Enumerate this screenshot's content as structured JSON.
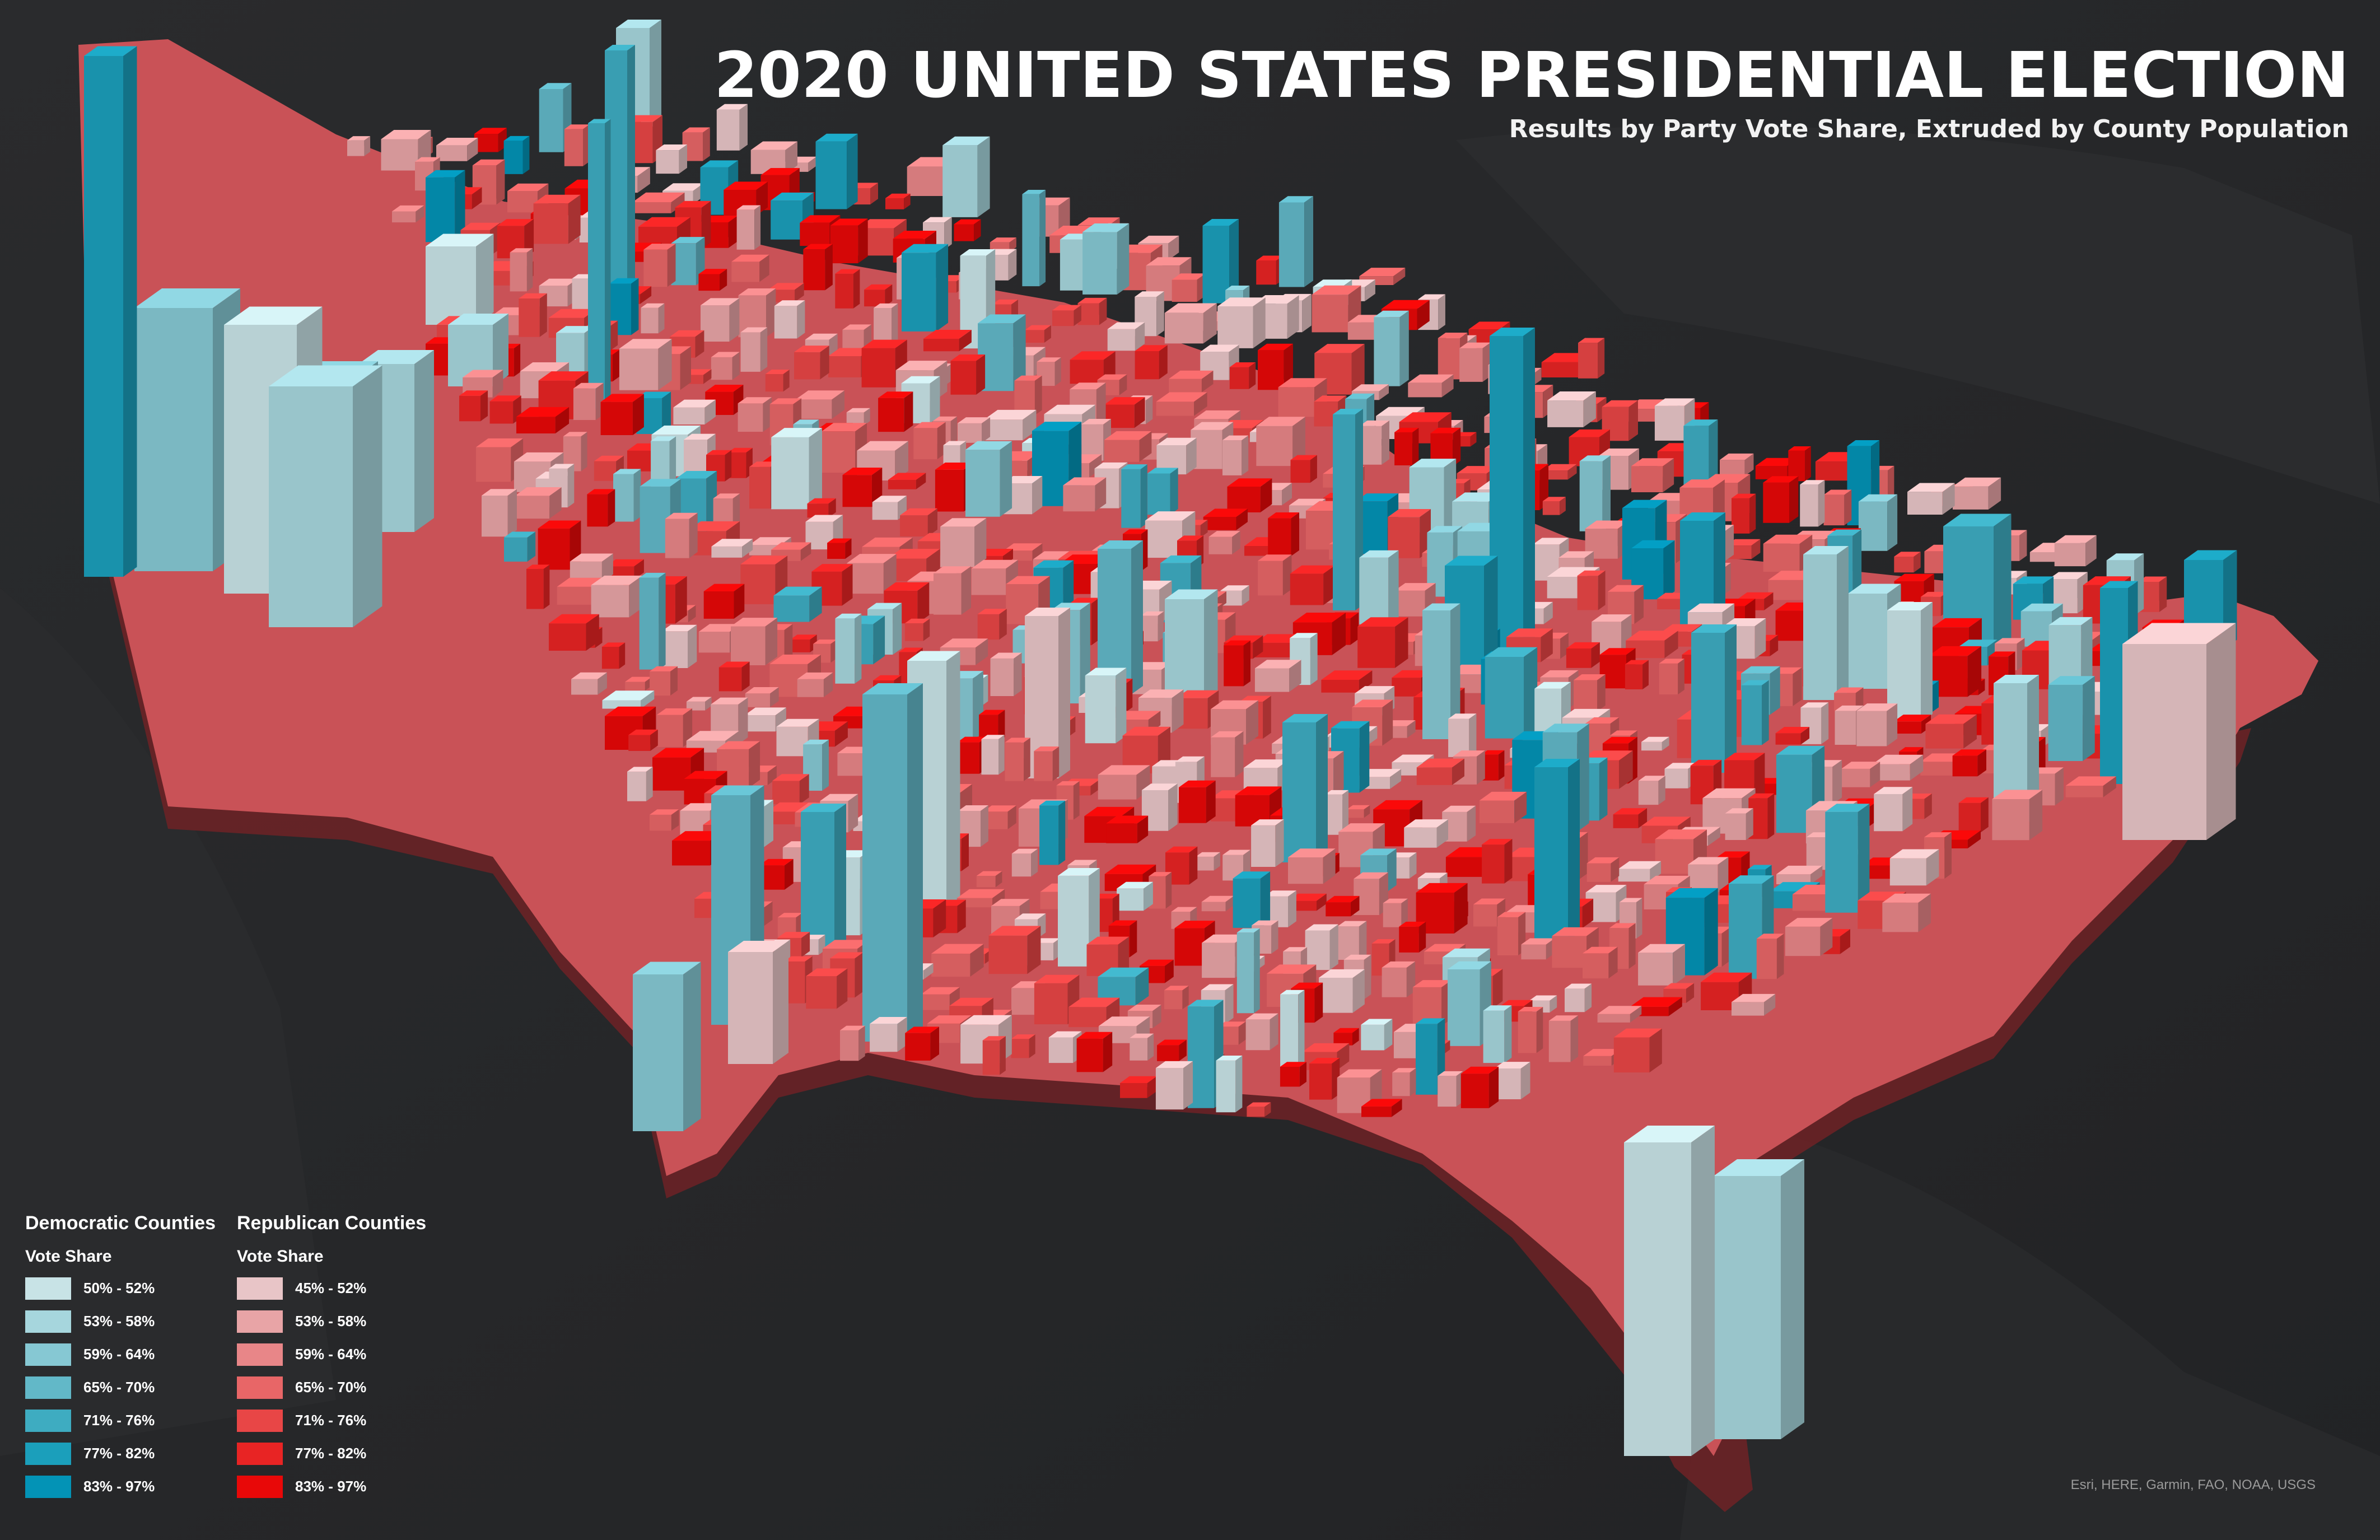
{
  "title": "2020 UNITED STATES PRESIDENTIAL ELECTION",
  "subtitle": "Results by Party Vote Share, Extruded by County Population",
  "legend": {
    "democratic": {
      "title": "Democratic Counties",
      "subtitle": "Vote Share",
      "items": [
        {
          "label": "50% - 52%",
          "color": "#c8e3e6"
        },
        {
          "label": "53% - 58%",
          "color": "#a6d6dd"
        },
        {
          "label": "59% - 64%",
          "color": "#86c8d3"
        },
        {
          "label": "65% - 70%",
          "color": "#62b8c8"
        },
        {
          "label": "71% - 76%",
          "color": "#3eacc1"
        },
        {
          "label": "77% - 82%",
          "color": "#1b9fbb"
        },
        {
          "label": "83% - 97%",
          "color": "#0393b6"
        }
      ]
    },
    "republican": {
      "title": "Republican Counties",
      "subtitle": "Vote Share",
      "items": [
        {
          "label": "45% - 52%",
          "color": "#e8c5c7"
        },
        {
          "label": "53% - 58%",
          "color": "#e8a4a6"
        },
        {
          "label": "59% - 64%",
          "color": "#e88688"
        },
        {
          "label": "65% - 70%",
          "color": "#e86667"
        },
        {
          "label": "71% - 76%",
          "color": "#e84646"
        },
        {
          "label": "77% - 82%",
          "color": "#e82424"
        },
        {
          "label": "83% - 97%",
          "color": "#e80808"
        }
      ]
    }
  },
  "attribution": "Esri, HERE, Garmin, FAO, NOAA, USGS"
}
